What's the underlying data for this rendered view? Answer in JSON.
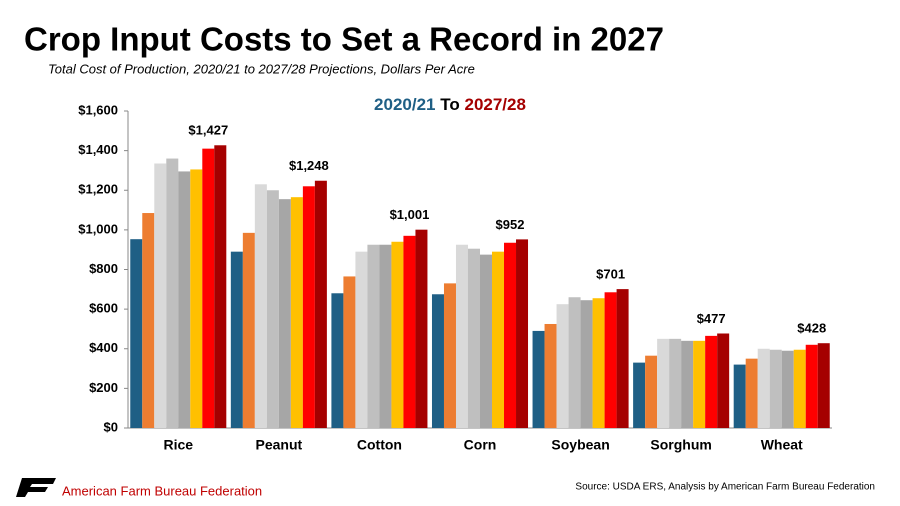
{
  "chart_data": {
    "type": "bar",
    "title": "Crop Input Costs to Set a Record in 2027",
    "subtitle": "Total Cost of Production, 2020/21 to 2027/28 Projections, Dollars Per Acre",
    "legend_start": "2020/21",
    "legend_joiner": "To",
    "legend_end": "2027/28",
    "categories": [
      "Rice",
      "Peanut",
      "Cotton",
      "Corn",
      "Soybean",
      "Sorghum",
      "Wheat"
    ],
    "series": [
      {
        "color": "#1f5f85",
        "values": [
          953,
          890,
          680,
          675,
          490,
          330,
          320
        ]
      },
      {
        "color": "#ed7d31",
        "values": [
          1085,
          985,
          765,
          730,
          525,
          365,
          350
        ]
      },
      {
        "color": "#d9d9d9",
        "values": [
          1335,
          1230,
          890,
          925,
          625,
          450,
          400
        ]
      },
      {
        "color": "#bfbfbf",
        "values": [
          1360,
          1200,
          925,
          905,
          660,
          450,
          395
        ]
      },
      {
        "color": "#a6a6a6",
        "values": [
          1295,
          1155,
          925,
          875,
          645,
          440,
          390
        ]
      },
      {
        "color": "#ffc000",
        "values": [
          1305,
          1165,
          940,
          890,
          655,
          440,
          395
        ]
      },
      {
        "color": "#ff0000",
        "values": [
          1410,
          1220,
          970,
          935,
          685,
          465,
          420
        ]
      },
      {
        "color": "#a50000",
        "values": [
          1427,
          1248,
          1001,
          952,
          701,
          477,
          428
        ],
        "value_labels": [
          "$1,427",
          "$1,248",
          "$1,001",
          "$952",
          "$701",
          "$477",
          "$428"
        ]
      }
    ],
    "ylim": [
      0,
      1600
    ],
    "yticks": [
      {
        "value": 0,
        "label": "$0"
      },
      {
        "value": 200,
        "label": "$200"
      },
      {
        "value": 400,
        "label": "$400"
      },
      {
        "value": 600,
        "label": "$600"
      },
      {
        "value": 800,
        "label": "$800"
      },
      {
        "value": 1000,
        "label": "$1,000"
      },
      {
        "value": 1200,
        "label": "$1,200"
      },
      {
        "value": 1400,
        "label": "$1,400"
      },
      {
        "value": 1600,
        "label": "$1,600"
      }
    ],
    "grid": false,
    "organization": "American Farm Bureau Federation",
    "source": "Source: USDA ERS, Analysis by American Farm Bureau Federation"
  }
}
